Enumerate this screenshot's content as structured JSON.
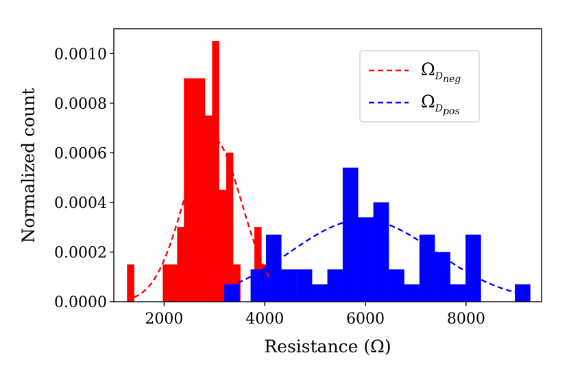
{
  "chart_data": {
    "type": "histogram",
    "xlabel": "Resistance (Ω)",
    "ylabel": "Normalized count",
    "xlim": [
      1000,
      9500
    ],
    "ylim": [
      0,
      0.0011
    ],
    "xticks": [
      2000,
      4000,
      6000,
      8000
    ],
    "xtick_labels": [
      "2000",
      "4000",
      "6000",
      "8000"
    ],
    "yticks": [
      0,
      0.0002,
      0.0004,
      0.0006,
      0.0008,
      0.001
    ],
    "ytick_labels": [
      "0.0000",
      "0.0002",
      "0.0004",
      "0.0006",
      "0.0008",
      "0.0010"
    ],
    "series": [
      {
        "name": "Ω_D_neg",
        "legend_main": "Ω",
        "legend_sub1": "D",
        "legend_sub2": "neg",
        "color": "#ff0000",
        "bins": [
          [
            1265,
            1405,
            0.00015
          ],
          [
            1975,
            2115,
            0.00015
          ],
          [
            2115,
            2260,
            0.00015
          ],
          [
            2260,
            2395,
            0.0003
          ],
          [
            2395,
            2535,
            0.0009
          ],
          [
            2535,
            2675,
            0.0009
          ],
          [
            2675,
            2815,
            0.0009
          ],
          [
            2815,
            2955,
            0.00075
          ],
          [
            2955,
            3095,
            0.00105
          ],
          [
            3095,
            3235,
            0.00045
          ],
          [
            3235,
            3375,
            0.0006
          ],
          [
            3375,
            3515,
            0.00015
          ],
          [
            3795,
            3935,
            0.0003
          ],
          [
            3935,
            4075,
            0.00015
          ]
        ],
        "fit_mean": 2960,
        "fit_std": 580,
        "fit_peak": 0.00066,
        "fit_range": [
          1400,
          4120
        ]
      },
      {
        "name": "Ω_D_pos",
        "legend_main": "Ω",
        "legend_sub1": "D",
        "legend_sub2": "pos",
        "color": "#0000ff",
        "bins": [
          [
            3195,
            3500,
            7e-05
          ],
          [
            3720,
            4025,
            0.00013
          ],
          [
            4025,
            4330,
            0.00027
          ],
          [
            4330,
            4635,
            0.00013
          ],
          [
            4635,
            4940,
            0.00013
          ],
          [
            4940,
            5245,
            7e-05
          ],
          [
            5245,
            5550,
            0.00013
          ],
          [
            5550,
            5855,
            0.00054
          ],
          [
            5855,
            6160,
            0.00034
          ],
          [
            6160,
            6465,
            0.0004
          ],
          [
            6465,
            6770,
            0.00013
          ],
          [
            6770,
            7075,
            7e-05
          ],
          [
            7075,
            7380,
            0.00027
          ],
          [
            7380,
            7685,
            0.0002
          ],
          [
            7685,
            7990,
            7e-05
          ],
          [
            7990,
            8295,
            0.00027
          ],
          [
            8970,
            9275,
            7e-05
          ]
        ],
        "fit_mean": 5950,
        "fit_std": 1450,
        "fit_peak": 0.00033,
        "fit_range": [
          3300,
          9050
        ]
      }
    ]
  }
}
